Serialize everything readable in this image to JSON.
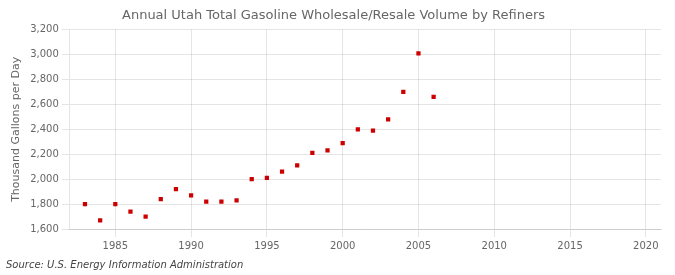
{
  "chart_data": {
    "type": "scatter",
    "title": "Annual Utah Total Gasoline Wholesale/Resale Volume by Refiners",
    "ylabel": "Thousand Gallons per Day",
    "source": "Source: U.S. Energy Information Administration",
    "x": [
      1983,
      1984,
      1985,
      1986,
      1987,
      1988,
      1989,
      1990,
      1991,
      1992,
      1993,
      1994,
      1995,
      1996,
      1997,
      1998,
      1999,
      2000,
      2001,
      2002,
      2003,
      2004,
      2005,
      2006
    ],
    "values": [
      1800,
      1670,
      1800,
      1740,
      1700,
      1840,
      1920,
      1870,
      1820,
      1820,
      1830,
      2000,
      2010,
      2060,
      2110,
      2210,
      2230,
      2290,
      2400,
      2390,
      2480,
      2700,
      3010,
      2660
    ],
    "color": "#cc0000",
    "marker": "square",
    "xlim": [
      1982,
      2021
    ],
    "xticks": [
      1985,
      1990,
      1995,
      2000,
      2005,
      2010,
      2015,
      2020
    ],
    "ylim": [
      1600,
      3200
    ],
    "yticks": [
      {
        "value": 1600,
        "label": "1,600"
      },
      {
        "value": 1800,
        "label": "1,800"
      },
      {
        "value": 2000,
        "label": "2,000"
      },
      {
        "value": 2200,
        "label": "2,200"
      },
      {
        "value": 2400,
        "label": "2,400"
      },
      {
        "value": 2600,
        "label": "2,600"
      },
      {
        "value": 2800,
        "label": "2,800"
      },
      {
        "value": 3000,
        "label": "3,000"
      },
      {
        "value": 3200,
        "label": "3,200"
      }
    ],
    "grid": true
  }
}
